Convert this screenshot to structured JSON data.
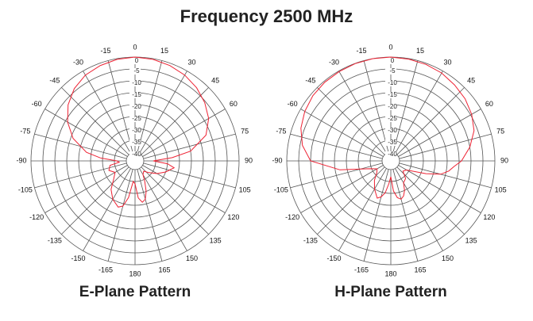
{
  "title": "Frequency 2500 MHz",
  "trace_color": "#ee2233",
  "grid_color": "#555555",
  "chart_data": [
    {
      "type": "polar",
      "title": "E-Plane Pattern",
      "angle_ticks": [
        0,
        15,
        30,
        45,
        60,
        75,
        90,
        105,
        120,
        135,
        150,
        165,
        180,
        -165,
        -150,
        -135,
        -120,
        -105,
        -90,
        -75,
        -60,
        -45,
        -30,
        -15
      ],
      "radial_ticks": [
        0,
        -5,
        -10,
        -15,
        -20,
        -25,
        -30,
        -35,
        -40
      ],
      "rlim": [
        -40,
        0
      ],
      "series": [
        {
          "theta": [
            0,
            10,
            20,
            30,
            40,
            50,
            60,
            70,
            80,
            85,
            90,
            95,
            100,
            110,
            120,
            130,
            140,
            150,
            155,
            160,
            165,
            170,
            175,
            180,
            -175,
            -170,
            -165,
            -160,
            -150,
            -140,
            -130,
            -120,
            -110,
            -100,
            -95,
            -90,
            -85,
            -80,
            -70,
            -60,
            -50,
            -40,
            -30,
            -20,
            -10
          ],
          "r": [
            0,
            -0.3,
            -1,
            -2,
            -3.5,
            -5.5,
            -8,
            -12,
            -20,
            -28,
            -36,
            -30,
            -27,
            -30,
            -33,
            -36,
            -38,
            -37,
            -34,
            -30,
            -27,
            -26,
            -28,
            -34,
            -35,
            -28,
            -24,
            -23,
            -25,
            -28,
            -32,
            -34,
            -32,
            -33,
            -37,
            -36,
            -29,
            -23,
            -16,
            -11,
            -7,
            -4,
            -2,
            -1,
            -0.3
          ]
        }
      ]
    },
    {
      "type": "polar",
      "title": "H-Plane Pattern",
      "angle_ticks": [
        0,
        15,
        30,
        45,
        60,
        75,
        90,
        105,
        120,
        135,
        150,
        165,
        180,
        -165,
        -150,
        -135,
        -120,
        -105,
        -90,
        -75,
        -60,
        -45,
        -30,
        -15
      ],
      "radial_ticks": [
        0,
        -5,
        -10,
        -15,
        -20,
        -25,
        -30,
        -35,
        -40
      ],
      "rlim": [
        -40,
        0
      ],
      "series": [
        {
          "theta": [
            0,
            10,
            20,
            30,
            40,
            50,
            60,
            70,
            80,
            90,
            95,
            100,
            105,
            110,
            120,
            130,
            140,
            150,
            155,
            160,
            165,
            170,
            175,
            180,
            -175,
            -170,
            -165,
            -160,
            -150,
            -140,
            -130,
            -120,
            -110,
            -100,
            -90,
            -80,
            -70,
            -60,
            -50,
            -40,
            -30,
            -20,
            -10
          ],
          "r": [
            0,
            -0.2,
            -0.5,
            -1,
            -2,
            -3,
            -4.5,
            -6.5,
            -10,
            -14,
            -17,
            -19,
            -22,
            -28,
            -36,
            -37,
            -34,
            -33,
            -30,
            -28,
            -27,
            -28,
            -31,
            -37,
            -34,
            -30,
            -28,
            -27,
            -30,
            -33,
            -36,
            -37,
            -34,
            -22,
            -10,
            -6,
            -3.5,
            -2,
            -1,
            -0.5,
            -0.3,
            -0.1,
            0
          ]
        }
      ]
    }
  ]
}
